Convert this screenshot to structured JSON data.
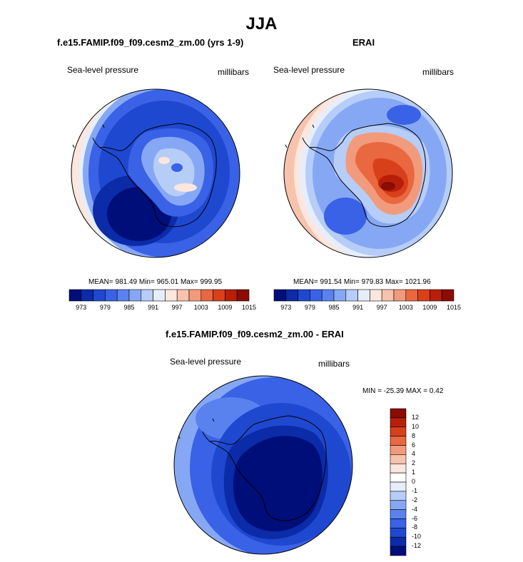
{
  "figure": {
    "title": "JJA"
  },
  "panels": [
    {
      "title": "f.e15.FAMIP.f09_f09.cesm2_zm.00 (yrs 1-9)",
      "left_label": "Sea-level pressure",
      "right_label": "millibars",
      "stats": "MEAN= 981.49  Min= 965.01  Max= 999.95"
    },
    {
      "title": "ERAI",
      "left_label": "Sea-level pressure",
      "right_label": "millibars",
      "stats": "MEAN= 991.54  Min= 979.83  Max= 1021.96"
    },
    {
      "title": "f.e15.FAMIP.f09_f09.cesm2_zm.00 - ERAI",
      "left_label": "Sea-level pressure",
      "right_label": "millibars",
      "stats": "MIN = -25.39 MAX =   0.42"
    }
  ],
  "colorbar_abs": {
    "ticks": [
      "973",
      "979",
      "985",
      "991",
      "997",
      "1003",
      "1009",
      "1015"
    ],
    "colors": [
      "#000e7a",
      "#0b2ba8",
      "#1f48d0",
      "#3a62e6",
      "#5a82ef",
      "#86a8f4",
      "#b6cdf8",
      "#e6eefc",
      "#fde6dd",
      "#f8c3ad",
      "#f29b7c",
      "#e9683f",
      "#d8401c",
      "#b81f0a",
      "#8a0c02"
    ]
  },
  "colorbar_diff": {
    "ticks": [
      "12",
      "10",
      "8",
      "6",
      "4",
      "2",
      "1",
      "0",
      "-1",
      "-2",
      "-4",
      "-6",
      "-8",
      "-10",
      "-12"
    ],
    "colors": [
      "#8a0c02",
      "#b81f0a",
      "#d8401c",
      "#e9683f",
      "#f29b7c",
      "#f8c3ad",
      "#fde6dd",
      "#ffffff",
      "#e6eefc",
      "#b6cdf8",
      "#86a8f4",
      "#5a82ef",
      "#3a62e6",
      "#1f48d0",
      "#0b2ba8",
      "#000e7a"
    ]
  },
  "chart_data": [
    {
      "type": "heatmap",
      "title": "f.e15.FAMIP.f09_f09.cesm2_zm.00 (yrs 1-9)",
      "variable": "Sea-level pressure",
      "units": "millibars",
      "projection": "south polar stereographic",
      "mean": 981.49,
      "min": 965.01,
      "max": 999.95,
      "levels": [
        973,
        976,
        979,
        982,
        985,
        988,
        991,
        994,
        997,
        1000,
        1003,
        1006,
        1009,
        1012,
        1015
      ]
    },
    {
      "type": "heatmap",
      "title": "ERAI",
      "variable": "Sea-level pressure",
      "units": "millibars",
      "projection": "south polar stereographic",
      "mean": 991.54,
      "min": 979.83,
      "max": 1021.96,
      "levels": [
        973,
        976,
        979,
        982,
        985,
        988,
        991,
        994,
        997,
        1000,
        1003,
        1006,
        1009,
        1012,
        1015
      ]
    },
    {
      "type": "heatmap",
      "title": "f.e15.FAMIP.f09_f09.cesm2_zm.00 - ERAI",
      "variable": "Sea-level pressure",
      "units": "millibars",
      "projection": "south polar stereographic",
      "min": -25.39,
      "max": 0.42,
      "levels": [
        -12,
        -10,
        -8,
        -6,
        -4,
        -2,
        -1,
        0,
        1,
        2,
        4,
        6,
        8,
        10,
        12
      ]
    }
  ]
}
